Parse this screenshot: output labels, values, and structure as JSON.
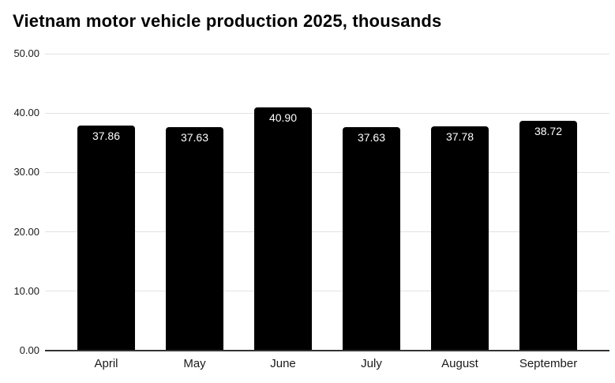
{
  "chart_data": {
    "type": "bar",
    "title": "Vietnam motor vehicle production 2025, thousands",
    "categories": [
      "April",
      "May",
      "June",
      "July",
      "August",
      "September"
    ],
    "values": [
      37.86,
      37.63,
      40.9,
      37.63,
      37.78,
      38.72
    ],
    "value_labels": [
      "37.86",
      "37.63",
      "40.90",
      "37.63",
      "37.78",
      "38.72"
    ],
    "xlabel": "",
    "ylabel": "",
    "ylim": [
      0,
      50
    ],
    "y_tick_labels": [
      "50.00",
      "40.00",
      "30.00",
      "20.00",
      "10.00",
      "0.00"
    ],
    "y_tick_values": [
      50,
      40,
      30,
      20,
      10,
      0
    ],
    "grid": "horizontal",
    "legend": "none",
    "colors": {
      "bar": "#000000",
      "bar_value_label": "#ffffff",
      "gridline": "#e3e3e3",
      "axis_line": "#333333",
      "tick_label": "#1a1a1a",
      "title": "#000000",
      "background": "#ffffff"
    }
  }
}
